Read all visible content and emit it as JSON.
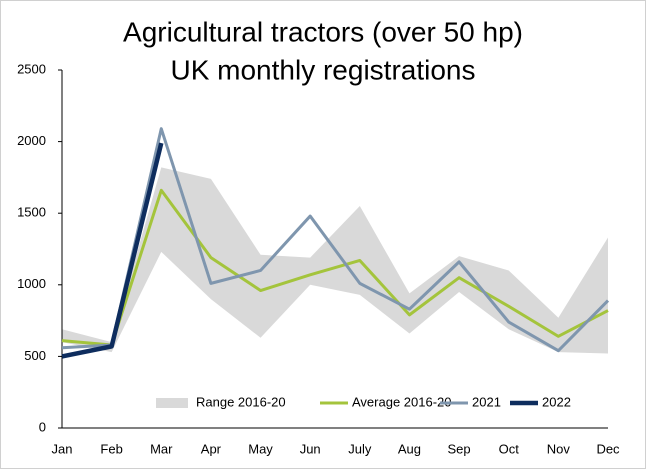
{
  "chart_data": {
    "type": "line",
    "title": "Agricultural tractors (over 50 hp)",
    "subtitle": "UK monthly registrations",
    "categories": [
      "Jan",
      "Feb",
      "Mar",
      "Apr",
      "May",
      "Jun",
      "July",
      "Aug",
      "Sep",
      "Oct",
      "Nov",
      "Dec"
    ],
    "range": {
      "name": "Range 2016-20",
      "color": "#d9d9d9",
      "low": [
        600,
        530,
        1230,
        900,
        630,
        1000,
        930,
        660,
        950,
        690,
        530,
        520
      ],
      "high": [
        690,
        600,
        1820,
        1740,
        1210,
        1190,
        1550,
        940,
        1200,
        1100,
        770,
        1330
      ]
    },
    "series": [
      {
        "name": "Average 2016-20",
        "color": "#a4c43c",
        "width": 3,
        "values": [
          610,
          580,
          1660,
          1190,
          960,
          1070,
          1170,
          790,
          1050,
          850,
          640,
          820
        ]
      },
      {
        "name": "2021",
        "color": "#7f96ae",
        "width": 3,
        "values": [
          560,
          580,
          2090,
          1010,
          1100,
          1480,
          1010,
          830,
          1160,
          740,
          540,
          890
        ]
      },
      {
        "name": "2022",
        "color": "#0e2d5e",
        "width": 4.5,
        "values": [
          500,
          570,
          1990,
          null,
          null,
          null,
          null,
          null,
          null,
          null,
          null,
          null
        ]
      }
    ],
    "ylim": [
      0,
      2500
    ],
    "yticks": [
      0,
      500,
      1000,
      1500,
      2000,
      2500
    ],
    "grid": false,
    "legend": "bottom"
  }
}
